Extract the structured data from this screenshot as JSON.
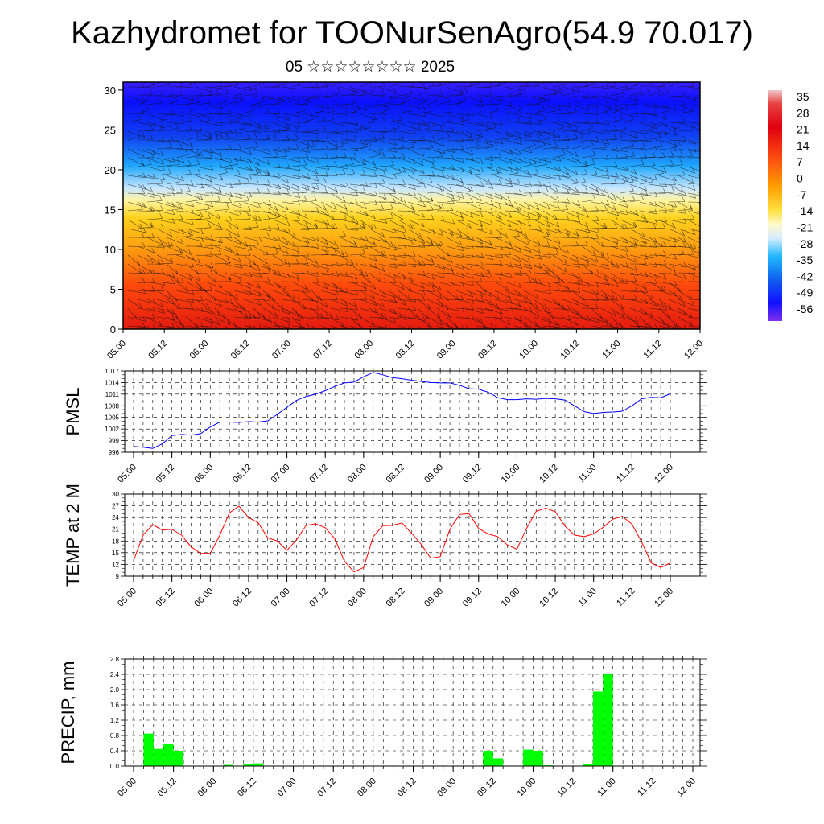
{
  "title": "Kazhydromet for TOONurSenAgro(54.9 70.017)",
  "subtitle": "05 ☆☆☆☆☆☆☆☆ 2025",
  "chart_data": [
    {
      "type": "heatmap",
      "description_kind": "temperature cross-section with wind barbs",
      "x_ticks": [
        "05.00",
        "05.12",
        "06.00",
        "06.12",
        "07.00",
        "07.12",
        "08.00",
        "08.12",
        "09.00",
        "09.12",
        "10.00",
        "10.12",
        "11.00",
        "11.12",
        "12.00"
      ],
      "y_ticks": [
        "0",
        "5",
        "10",
        "15",
        "20",
        "25",
        "30"
      ],
      "ylim": [
        0,
        31
      ],
      "colorbar_labels": [
        "35",
        "28",
        "21",
        "14",
        "7",
        "0",
        "-7",
        "-14",
        "-21",
        "-28",
        "-35",
        "-42",
        "-49",
        "-56"
      ],
      "colorbar_range": [
        -60,
        38
      ]
    },
    {
      "type": "line",
      "ylabel": "PMSL",
      "ylim": [
        996,
        1017
      ],
      "y_ticks": [
        "996",
        "999",
        "1002",
        "1005",
        "1008",
        "1011",
        "1014",
        "1017"
      ],
      "x_ticks": [
        "05.00",
        "05.12",
        "06.00",
        "06.12",
        "07.00",
        "07.12",
        "08.00",
        "08.12",
        "09.00",
        "09.12",
        "10.00",
        "10.12",
        "11.00",
        "11.12",
        "12.00"
      ],
      "series": [
        {
          "color": "#0000ff",
          "values": [
            997.5,
            997.3,
            997.0,
            998.2,
            1000.3,
            1000.6,
            1000.4,
            1000.8,
            1002.5,
            1003.8,
            1003.8,
            1003.7,
            1003.9,
            1003.8,
            1004.1,
            1005.8,
            1007.6,
            1009.4,
            1010.4,
            1011.0,
            1011.9,
            1013.0,
            1013.9,
            1014.1,
            1015.5,
            1016.6,
            1016.0,
            1015.3,
            1015.0,
            1014.6,
            1014.3,
            1014.0,
            1013.9,
            1013.9,
            1013.3,
            1012.4,
            1012.3,
            1011.5,
            1010.1,
            1009.6,
            1009.6,
            1009.8,
            1009.7,
            1009.9,
            1009.8,
            1009.5,
            1008.0,
            1006.5,
            1006.0,
            1006.3,
            1006.4,
            1006.6,
            1008.0,
            1009.8,
            1010.2,
            1010.1,
            1011.1
          ]
        }
      ]
    },
    {
      "type": "line",
      "ylabel": "TEMP at 2 M",
      "ylim": [
        9,
        30
      ],
      "y_ticks": [
        "9",
        "12",
        "15",
        "18",
        "21",
        "24",
        "27",
        "30"
      ],
      "x_ticks": [
        "05.00",
        "05.12",
        "06.00",
        "06.12",
        "07.00",
        "07.12",
        "08.00",
        "08.12",
        "09.00",
        "09.12",
        "10.00",
        "10.12",
        "11.00",
        "11.12",
        "12.00"
      ],
      "series": [
        {
          "color": "#ff0000",
          "values": [
            13.0,
            19.5,
            22.2,
            20.8,
            21.0,
            19.5,
            16.5,
            14.8,
            14.8,
            19.5,
            25.2,
            26.9,
            24.0,
            22.7,
            18.8,
            18.0,
            15.6,
            18.3,
            22.0,
            22.4,
            21.4,
            18.6,
            12.8,
            10.1,
            11.2,
            19.1,
            21.9,
            22.0,
            22.6,
            20.0,
            17.2,
            13.6,
            14.0,
            21.0,
            24.8,
            25.0,
            21.2,
            19.8,
            19.1,
            17.0,
            15.9,
            21.2,
            25.6,
            26.4,
            25.5,
            21.8,
            19.5,
            19.1,
            19.8,
            21.5,
            23.6,
            24.3,
            22.3,
            17.8,
            12.4,
            11.2,
            12.4
          ]
        }
      ]
    },
    {
      "type": "bar",
      "ylabel": "PRECIP, mm",
      "ylim": [
        0,
        2.8
      ],
      "y_ticks": [
        "0.0",
        "0.4",
        "0.8",
        "1.2",
        "1.6",
        "2.0",
        "2.4",
        "2.8"
      ],
      "x_ticks": [
        "05.00",
        "05.12",
        "06.00",
        "06.12",
        "07.00",
        "07.12",
        "08.00",
        "08.12",
        "09.00",
        "09.12",
        "10.00",
        "10.12",
        "11.00",
        "11.12",
        "12.00"
      ],
      "series": [
        {
          "color": "#00ff00",
          "values": [
            0,
            0.85,
            0.45,
            0.58,
            0.4,
            0,
            0,
            0,
            0,
            0.03,
            0,
            0.05,
            0.07,
            0,
            0,
            0,
            0,
            0,
            0,
            0,
            0,
            0,
            0,
            0,
            0,
            0,
            0,
            0,
            0,
            0,
            0,
            0,
            0,
            0,
            0,
            0.4,
            0.2,
            0,
            0,
            0.43,
            0.4,
            0.02,
            0,
            0,
            0,
            0.05,
            1.95,
            2.42,
            0,
            0,
            0,
            0,
            0,
            0,
            0,
            0
          ]
        }
      ]
    }
  ]
}
